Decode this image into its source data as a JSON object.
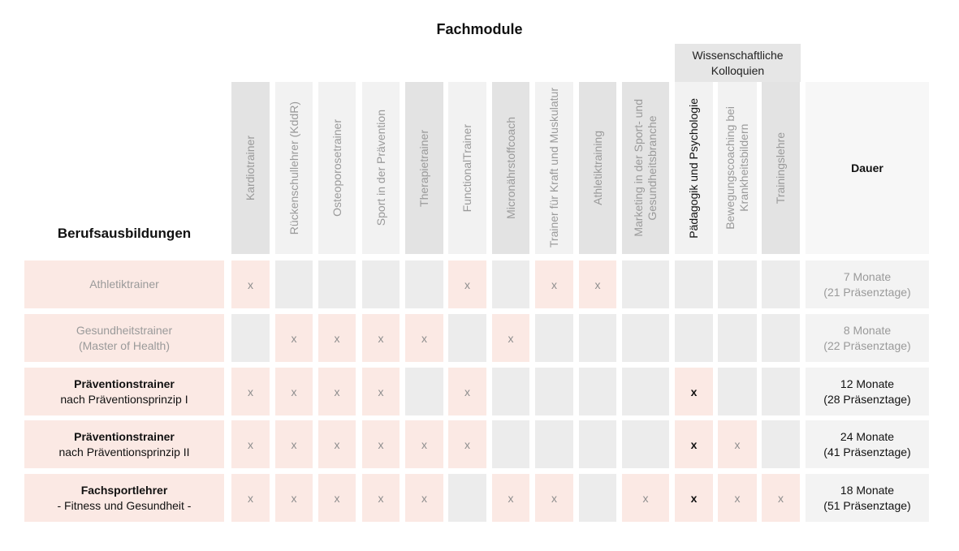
{
  "heading": "Fachmodule",
  "kolloquien_heading": "Wissenschaftliche\nKolloquien",
  "row_heading": "Berufsausbildungen",
  "duration_heading": "Dauer",
  "columns": [
    {
      "label": "Kardiotrainer"
    },
    {
      "label": "Rückenschullehrer (KddR)"
    },
    {
      "label": "Osteoporosetrainer"
    },
    {
      "label": "Sport in der Prävention"
    },
    {
      "label": "Therapietrainer"
    },
    {
      "label": "FunctionalTrainer"
    },
    {
      "label": "Micronährstoffcoach"
    },
    {
      "label": "Trainer für Kraft und Muskulatur"
    },
    {
      "label": "Athletiktraining"
    },
    {
      "label": "Marketing in der Sport- und\nGesundheitsbranche"
    },
    {
      "label": "Pädagogik und Psychologie"
    },
    {
      "label": "Bewegungscoaching bei\nKrankheitsbildern"
    },
    {
      "label": "Trainingslehre"
    }
  ],
  "rows": [
    {
      "line1": "Athletiktrainer",
      "line2": "",
      "style": "gray",
      "cells": [
        "x",
        "",
        "",
        "",
        "",
        "x",
        "",
        "x",
        "x",
        "",
        "",
        "",
        ""
      ],
      "duration1": "7 Monate",
      "duration2": "(21 Präsenztage)"
    },
    {
      "line1": "Gesundheitstrainer",
      "line2": "(Master of Health)",
      "style": "gray",
      "cells": [
        "",
        "x",
        "x",
        "x",
        "x",
        "",
        "x",
        "",
        "",
        "",
        "",
        "",
        ""
      ],
      "duration1": "8 Monate",
      "duration2": "(22 Präsenztage)"
    },
    {
      "line1": "Präventionstrainer",
      "line2": "nach Präventionsprinzip I",
      "style": "dark",
      "cells": [
        "x",
        "x",
        "x",
        "x",
        "",
        "x",
        "",
        "",
        "",
        "",
        "x",
        "",
        ""
      ],
      "duration1": "12 Monate",
      "duration2": "(28 Präsenztage)"
    },
    {
      "line1": "Präventionstrainer",
      "line2": "nach Präventionsprinzip II",
      "style": "dark",
      "cells": [
        "x",
        "x",
        "x",
        "x",
        "x",
        "x",
        "",
        "",
        "",
        "",
        "x",
        "x",
        ""
      ],
      "duration1": "24 Monate",
      "duration2": "(41 Präsenztage)"
    },
    {
      "line1": "Fachsportlehrer",
      "line2": "- Fitness und Gesundheit -",
      "style": "dark",
      "cells": [
        "x",
        "x",
        "x",
        "x",
        "x",
        "",
        "x",
        "x",
        "",
        "x",
        "x",
        "x",
        "x"
      ],
      "duration1": "18 Monate",
      "duration2": "(51 Präsenztage)"
    }
  ],
  "colors": {
    "active_cell": "#fbe9e4",
    "inactive_cell": "#ececec",
    "header": "#e3e3e3"
  }
}
